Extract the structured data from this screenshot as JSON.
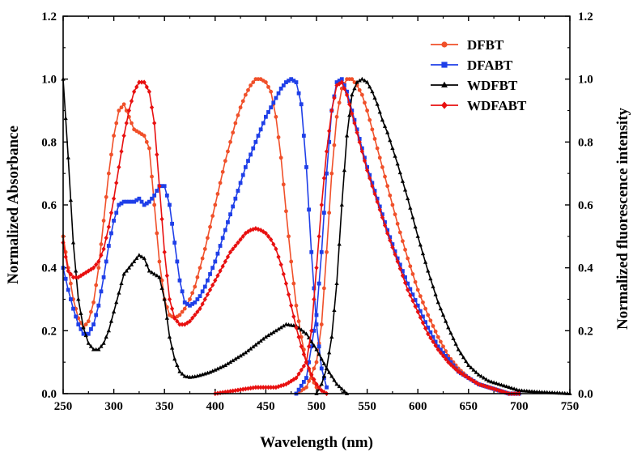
{
  "chart_data": {
    "type": "line",
    "title": "",
    "xlabel": "Wavelength (nm)",
    "ylabel_left": "Normalized Absorbance",
    "ylabel_right": "Normalized fluorescence intensity",
    "xlim": [
      250,
      750
    ],
    "ylim": [
      0.0,
      1.2
    ],
    "x_ticks": [
      "250",
      "300",
      "350",
      "400",
      "450",
      "500",
      "550",
      "600",
      "650",
      "700",
      "750"
    ],
    "y_ticks": [
      "0.0",
      "0.2",
      "0.4",
      "0.6",
      "0.8",
      "1.0",
      "1.2"
    ],
    "legend_position": "top-right",
    "series": [
      {
        "name": "DFBT",
        "color": "#f0502a",
        "marker": "circle",
        "kind": "absorbance",
        "x": [
          250,
          255,
          260,
          265,
          270,
          275,
          280,
          285,
          290,
          295,
          300,
          305,
          310,
          315,
          320,
          325,
          330,
          335,
          340,
          345,
          350,
          355,
          360,
          365,
          370,
          375,
          380,
          385,
          390,
          395,
          400,
          405,
          410,
          415,
          420,
          425,
          430,
          435,
          440,
          445,
          450,
          455,
          460,
          465,
          470,
          475,
          480,
          485,
          490,
          495,
          500
        ],
        "y": [
          0.5,
          0.4,
          0.3,
          0.24,
          0.21,
          0.23,
          0.29,
          0.4,
          0.55,
          0.7,
          0.82,
          0.9,
          0.92,
          0.88,
          0.84,
          0.83,
          0.82,
          0.78,
          0.6,
          0.42,
          0.3,
          0.25,
          0.24,
          0.25,
          0.27,
          0.3,
          0.34,
          0.4,
          0.46,
          0.53,
          0.6,
          0.67,
          0.74,
          0.8,
          0.86,
          0.91,
          0.95,
          0.98,
          1.0,
          1.0,
          0.99,
          0.96,
          0.88,
          0.75,
          0.58,
          0.42,
          0.28,
          0.18,
          0.1,
          0.05,
          0.02
        ]
      },
      {
        "name": "DFBT",
        "color": "#f0502a",
        "marker": "circle",
        "kind": "fluorescence",
        "x": [
          480,
          490,
          500,
          505,
          510,
          515,
          520,
          525,
          530,
          535,
          540,
          545,
          550,
          555,
          560,
          565,
          570,
          575,
          580,
          590,
          600,
          610,
          620,
          630,
          640,
          650,
          660,
          670,
          680,
          690,
          700
        ],
        "y": [
          0.0,
          0.02,
          0.1,
          0.22,
          0.45,
          0.7,
          0.88,
          0.97,
          1.0,
          1.0,
          0.98,
          0.95,
          0.9,
          0.84,
          0.78,
          0.72,
          0.66,
          0.6,
          0.54,
          0.43,
          0.33,
          0.25,
          0.18,
          0.12,
          0.08,
          0.05,
          0.03,
          0.02,
          0.01,
          0.0,
          0.0
        ]
      },
      {
        "name": "DFABT",
        "color": "#1f3fe8",
        "marker": "square",
        "kind": "absorbance",
        "x": [
          250,
          255,
          260,
          265,
          270,
          275,
          280,
          285,
          290,
          295,
          300,
          305,
          310,
          315,
          320,
          325,
          330,
          335,
          340,
          345,
          350,
          355,
          360,
          365,
          370,
          375,
          380,
          385,
          390,
          395,
          400,
          405,
          410,
          415,
          420,
          425,
          430,
          435,
          440,
          445,
          450,
          455,
          460,
          465,
          470,
          475,
          480,
          485,
          490,
          495,
          500,
          505,
          510
        ],
        "y": [
          0.4,
          0.33,
          0.27,
          0.22,
          0.19,
          0.19,
          0.22,
          0.28,
          0.37,
          0.47,
          0.55,
          0.6,
          0.61,
          0.61,
          0.61,
          0.62,
          0.6,
          0.61,
          0.63,
          0.66,
          0.66,
          0.6,
          0.48,
          0.36,
          0.29,
          0.28,
          0.29,
          0.31,
          0.34,
          0.38,
          0.42,
          0.47,
          0.52,
          0.57,
          0.62,
          0.67,
          0.72,
          0.76,
          0.8,
          0.84,
          0.88,
          0.91,
          0.94,
          0.97,
          0.99,
          1.0,
          0.99,
          0.92,
          0.72,
          0.45,
          0.22,
          0.08,
          0.02
        ]
      },
      {
        "name": "DFABT",
        "color": "#1f3fe8",
        "marker": "square",
        "kind": "fluorescence",
        "x": [
          480,
          490,
          500,
          505,
          510,
          515,
          520,
          525,
          530,
          535,
          540,
          545,
          550,
          555,
          560,
          570,
          580,
          590,
          600,
          610,
          620,
          630,
          640,
          650,
          660,
          670,
          680,
          690,
          700
        ],
        "y": [
          0.0,
          0.05,
          0.25,
          0.45,
          0.7,
          0.9,
          0.99,
          1.0,
          0.96,
          0.9,
          0.84,
          0.78,
          0.72,
          0.67,
          0.62,
          0.52,
          0.43,
          0.35,
          0.28,
          0.21,
          0.15,
          0.11,
          0.07,
          0.05,
          0.03,
          0.02,
          0.01,
          0.0,
          0.0
        ]
      },
      {
        "name": "WDFBT",
        "color": "#000000",
        "marker": "triangle",
        "kind": "absorbance",
        "x": [
          250,
          255,
          260,
          265,
          270,
          275,
          280,
          285,
          290,
          295,
          300,
          305,
          310,
          315,
          320,
          325,
          330,
          335,
          340,
          345,
          350,
          355,
          360,
          365,
          370,
          375,
          380,
          385,
          390,
          395,
          400,
          410,
          420,
          430,
          440,
          450,
          460,
          470,
          480,
          490,
          500,
          510,
          520,
          530
        ],
        "y": [
          1.0,
          0.75,
          0.48,
          0.3,
          0.21,
          0.16,
          0.14,
          0.14,
          0.16,
          0.2,
          0.26,
          0.32,
          0.38,
          0.4,
          0.42,
          0.44,
          0.43,
          0.39,
          0.38,
          0.37,
          0.3,
          0.18,
          0.11,
          0.07,
          0.055,
          0.052,
          0.054,
          0.058,
          0.063,
          0.068,
          0.075,
          0.09,
          0.11,
          0.13,
          0.155,
          0.18,
          0.2,
          0.22,
          0.215,
          0.19,
          0.14,
          0.08,
          0.03,
          0.0
        ]
      },
      {
        "name": "WDFBT",
        "color": "#000000",
        "marker": "triangle",
        "kind": "fluorescence",
        "x": [
          500,
          505,
          510,
          515,
          520,
          525,
          530,
          535,
          540,
          545,
          550,
          555,
          560,
          565,
          570,
          575,
          580,
          590,
          600,
          610,
          620,
          630,
          640,
          650,
          660,
          670,
          680,
          690,
          700,
          720,
          750
        ],
        "y": [
          0.0,
          0.03,
          0.08,
          0.18,
          0.35,
          0.6,
          0.82,
          0.95,
          0.99,
          1.0,
          0.99,
          0.96,
          0.92,
          0.87,
          0.83,
          0.78,
          0.73,
          0.62,
          0.5,
          0.39,
          0.29,
          0.21,
          0.14,
          0.09,
          0.06,
          0.04,
          0.03,
          0.02,
          0.01,
          0.005,
          0.0
        ]
      },
      {
        "name": "WDFABT",
        "color": "#e81010",
        "marker": "diamond",
        "kind": "absorbance",
        "x": [
          250,
          255,
          260,
          265,
          270,
          275,
          280,
          285,
          290,
          295,
          300,
          305,
          310,
          315,
          320,
          325,
          330,
          335,
          340,
          345,
          350,
          355,
          360,
          365,
          370,
          375,
          380,
          385,
          390,
          395,
          400,
          405,
          410,
          415,
          420,
          425,
          430,
          435,
          440,
          445,
          450,
          455,
          460,
          465,
          470,
          475,
          480,
          485,
          490,
          495,
          500,
          505,
          510
        ],
        "y": [
          0.48,
          0.39,
          0.37,
          0.37,
          0.38,
          0.39,
          0.4,
          0.42,
          0.46,
          0.53,
          0.62,
          0.72,
          0.82,
          0.9,
          0.96,
          0.99,
          0.99,
          0.96,
          0.86,
          0.66,
          0.45,
          0.3,
          0.24,
          0.22,
          0.22,
          0.23,
          0.25,
          0.27,
          0.3,
          0.33,
          0.36,
          0.39,
          0.42,
          0.45,
          0.47,
          0.49,
          0.51,
          0.52,
          0.525,
          0.52,
          0.51,
          0.49,
          0.46,
          0.41,
          0.35,
          0.28,
          0.21,
          0.15,
          0.1,
          0.06,
          0.03,
          0.01,
          0.0
        ]
      },
      {
        "name": "WDFABT",
        "color": "#e81010",
        "marker": "diamond",
        "kind": "fluorescence",
        "x": [
          400,
          420,
          440,
          460,
          470,
          480,
          490,
          495,
          500,
          505,
          510,
          515,
          520,
          525,
          530,
          535,
          540,
          545,
          550,
          555,
          560,
          570,
          580,
          590,
          600,
          610,
          620,
          630,
          640,
          650,
          660,
          670,
          680,
          690,
          700
        ],
        "y": [
          0.0,
          0.01,
          0.02,
          0.02,
          0.03,
          0.05,
          0.1,
          0.2,
          0.4,
          0.6,
          0.77,
          0.9,
          0.98,
          0.99,
          0.95,
          0.89,
          0.83,
          0.77,
          0.71,
          0.66,
          0.61,
          0.51,
          0.42,
          0.33,
          0.26,
          0.19,
          0.14,
          0.1,
          0.07,
          0.05,
          0.03,
          0.02,
          0.01,
          0.0,
          0.0
        ]
      }
    ],
    "legend": [
      {
        "label": "DFBT",
        "color": "#f0502a",
        "marker": "circle"
      },
      {
        "label": "DFABT",
        "color": "#1f3fe8",
        "marker": "square"
      },
      {
        "label": "WDFBT",
        "color": "#000000",
        "marker": "triangle"
      },
      {
        "label": "WDFABT",
        "color": "#e81010",
        "marker": "diamond"
      }
    ]
  }
}
